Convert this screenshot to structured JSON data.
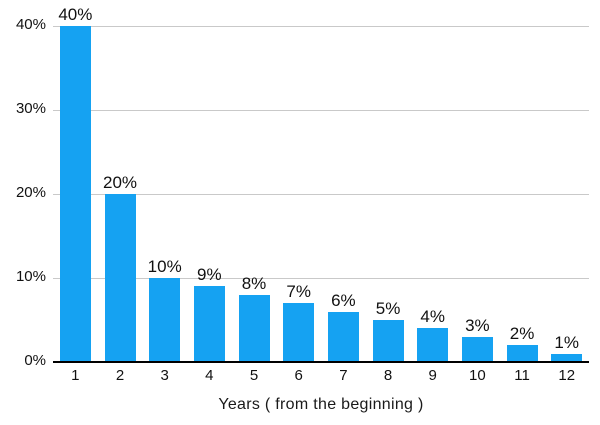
{
  "chart_data": {
    "type": "bar",
    "categories": [
      "1",
      "2",
      "3",
      "4",
      "5",
      "6",
      "7",
      "8",
      "9",
      "10",
      "11",
      "12"
    ],
    "values": [
      40,
      20,
      10,
      9,
      8,
      7,
      6,
      5,
      4,
      3,
      2,
      1
    ],
    "bar_labels": [
      "40%",
      "20%",
      "10%",
      "9%",
      "8%",
      "7%",
      "6%",
      "5%",
      "4%",
      "3%",
      "2%",
      "1%"
    ],
    "title": "",
    "xlabel": "Years ( from the beginning )",
    "ylabel": "",
    "ylim": [
      0,
      40
    ],
    "yticks": [
      {
        "value": 0,
        "label": "0%"
      },
      {
        "value": 10,
        "label": "10%"
      },
      {
        "value": 20,
        "label": "20%"
      },
      {
        "value": 30,
        "label": "30%"
      },
      {
        "value": 40,
        "label": "40%"
      }
    ],
    "grid": "horizontal",
    "legend": "none",
    "colors": {
      "bar": "#15a2f2",
      "gridline": "#c9c9c9",
      "axis_line": "#000000",
      "text": "#111111"
    }
  }
}
